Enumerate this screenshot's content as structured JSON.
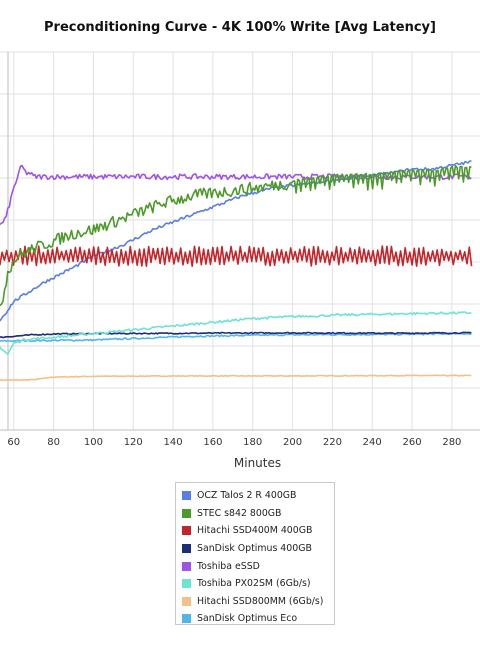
{
  "chart_data": {
    "type": "line",
    "title": "Preconditioning Curve - 4K 100% Write [Avg Latency]",
    "xlabel": "Minutes",
    "ylabel": "",
    "xlim": [
      53,
      290
    ],
    "ylim": [
      0,
      1
    ],
    "x_ticks": [
      60,
      80,
      100,
      120,
      140,
      160,
      180,
      200,
      220,
      240,
      260,
      280
    ],
    "grid": true,
    "legend_position": "bottom",
    "series": [
      {
        "name": "OCZ Talos 2 R 400GB",
        "color": "#5b7fe0",
        "x": [
          53,
          56,
          60,
          66,
          75,
          90,
          100,
          115,
          130,
          145,
          160,
          175,
          190,
          205,
          220,
          235,
          250,
          260,
          270,
          280,
          290
        ],
        "y": [
          0.29,
          0.31,
          0.34,
          0.36,
          0.39,
          0.43,
          0.46,
          0.49,
          0.53,
          0.56,
          0.59,
          0.62,
          0.64,
          0.65,
          0.66,
          0.67,
          0.68,
          0.69,
          0.69,
          0.7,
          0.71
        ]
      },
      {
        "name": "STEC s842 800GB",
        "color": "#4d9a2a",
        "x": [
          53,
          55,
          57,
          59,
          62,
          70,
          80,
          90,
          100,
          110,
          120,
          135,
          150,
          165,
          180,
          195,
          210,
          225,
          240,
          255,
          270,
          280,
          290
        ],
        "y": [
          0.33,
          0.36,
          0.42,
          0.44,
          0.46,
          0.48,
          0.5,
          0.52,
          0.53,
          0.55,
          0.57,
          0.6,
          0.62,
          0.63,
          0.64,
          0.65,
          0.66,
          0.67,
          0.67,
          0.68,
          0.68,
          0.69,
          0.69
        ]
      },
      {
        "name": "Hitachi SSD400M 400GB",
        "color": "#c4252a",
        "x": [
          53,
          290
        ],
        "y": [
          0.46,
          0.46
        ]
      },
      {
        "name": "SanDisk Optimus 400GB",
        "color": "#1c2e7a",
        "x": [
          53,
          60,
          70,
          80,
          100,
          150,
          200,
          250,
          290
        ],
        "y": [
          0.245,
          0.248,
          0.252,
          0.254,
          0.255,
          0.256,
          0.257,
          0.256,
          0.257
        ]
      },
      {
        "name": "Toshiba eSSD",
        "color": "#9d55e8",
        "x": [
          53,
          56,
          58,
          60,
          62,
          64,
          66,
          68,
          70,
          75,
          90,
          120,
          150,
          180,
          210,
          240,
          270,
          290
        ],
        "y": [
          0.54,
          0.56,
          0.6,
          0.64,
          0.67,
          0.7,
          0.68,
          0.68,
          0.67,
          0.67,
          0.67,
          0.67,
          0.67,
          0.67,
          0.67,
          0.67,
          0.67,
          0.67
        ]
      },
      {
        "name": "Toshiba PX02SM (6Gb/s)",
        "color": "#6ee3d4",
        "x": [
          53,
          55,
          57,
          60,
          66,
          80,
          100,
          130,
          160,
          180,
          200,
          230,
          260,
          290
        ],
        "y": [
          0.22,
          0.21,
          0.2,
          0.23,
          0.24,
          0.245,
          0.255,
          0.27,
          0.285,
          0.295,
          0.3,
          0.305,
          0.308,
          0.31
        ]
      },
      {
        "name": "Hitachi SSD800MM (6Gb/s)",
        "color": "#f3c088",
        "x": [
          53,
          60,
          70,
          80,
          100,
          150,
          200,
          250,
          290
        ],
        "y": [
          0.132,
          0.132,
          0.133,
          0.14,
          0.142,
          0.143,
          0.143,
          0.144,
          0.144
        ]
      },
      {
        "name": "SanDisk Optimus Eco",
        "color": "#52b6ea",
        "x": [
          53,
          60,
          80,
          100,
          150,
          200,
          250,
          290
        ],
        "y": [
          0.235,
          0.236,
          0.237,
          0.238,
          0.248,
          0.252,
          0.253,
          0.255
        ]
      }
    ]
  }
}
